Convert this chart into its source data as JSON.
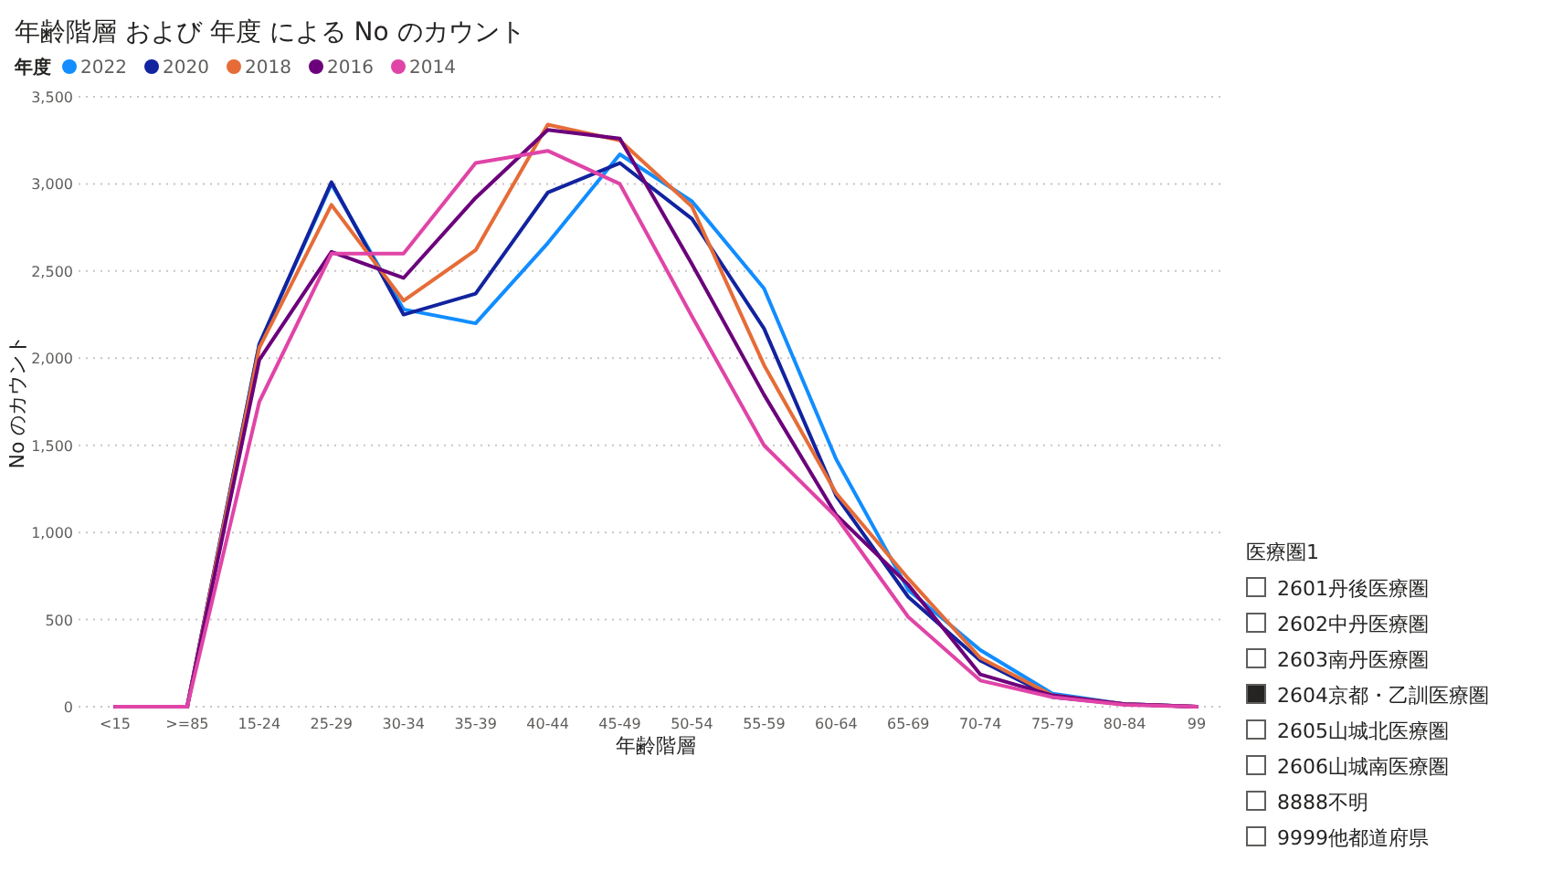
{
  "chart_data": [
    {
      "type": "line",
      "title": "年齢階層 および 年度 による No のカウント",
      "xlabel": "年齢階層",
      "ylabel": "No のカウント",
      "legend_title": "年度",
      "legend": "top left",
      "grid": "y",
      "categories": [
        "<15",
        ">=85",
        "15-24",
        "25-29",
        "30-34",
        "35-39",
        "40-44",
        "45-49",
        "50-54",
        "55-59",
        "60-64",
        "65-69",
        "70-74",
        "75-79",
        "80-84",
        "99"
      ],
      "ylim": [
        0,
        3500
      ],
      "yticks": [
        {
          "value": 0,
          "label": "0"
        },
        {
          "value": 500,
          "label": "500"
        },
        {
          "value": 1000,
          "label": "1,000"
        },
        {
          "value": 1500,
          "label": "1,500"
        },
        {
          "value": 2000,
          "label": "2,000"
        },
        {
          "value": 2500,
          "label": "2,500"
        },
        {
          "value": 3000,
          "label": "3,000"
        },
        {
          "value": 3500,
          "label": "3,500"
        }
      ],
      "series": [
        {
          "name": "2022",
          "color": "#118dff",
          "values": [
            0,
            0,
            2080,
            3000,
            2280,
            2200,
            2660,
            3170,
            2900,
            2400,
            1420,
            670,
            325,
            75,
            15,
            0
          ]
        },
        {
          "name": "2020",
          "color": "#12239e",
          "values": [
            0,
            0,
            2080,
            3010,
            2250,
            2370,
            2950,
            3120,
            2800,
            2170,
            1210,
            630,
            265,
            55,
            15,
            0
          ]
        },
        {
          "name": "2018",
          "color": "#e66c37",
          "values": [
            0,
            0,
            2060,
            2880,
            2330,
            2620,
            3340,
            3250,
            2870,
            1960,
            1225,
            735,
            280,
            65,
            15,
            0
          ]
        },
        {
          "name": "2016",
          "color": "#6b007b",
          "values": [
            0,
            0,
            1990,
            2610,
            2460,
            2920,
            3310,
            3260,
            2540,
            1790,
            1100,
            700,
            185,
            65,
            15,
            0
          ]
        },
        {
          "name": "2014",
          "color": "#e044a7",
          "values": [
            0,
            0,
            1750,
            2600,
            2600,
            3120,
            3190,
            3000,
            2240,
            1500,
            1090,
            515,
            150,
            55,
            10,
            0
          ]
        }
      ]
    },
    {
      "type": "other",
      "title": "医療圏1",
      "categories": [
        "2601丹後医療圏",
        "2602中丹医療圏",
        "2603南丹医療圏",
        "2604京都・乙訓医療圏",
        "2605山城北医療圏",
        "2606山城南医療圏",
        "8888不明",
        "9999他都道府県"
      ],
      "colors": [
        "#ffffff",
        "#ffffff",
        "#ffffff",
        "#252423",
        "#ffffff",
        "#ffffff",
        "#ffffff",
        "#ffffff"
      ]
    }
  ]
}
